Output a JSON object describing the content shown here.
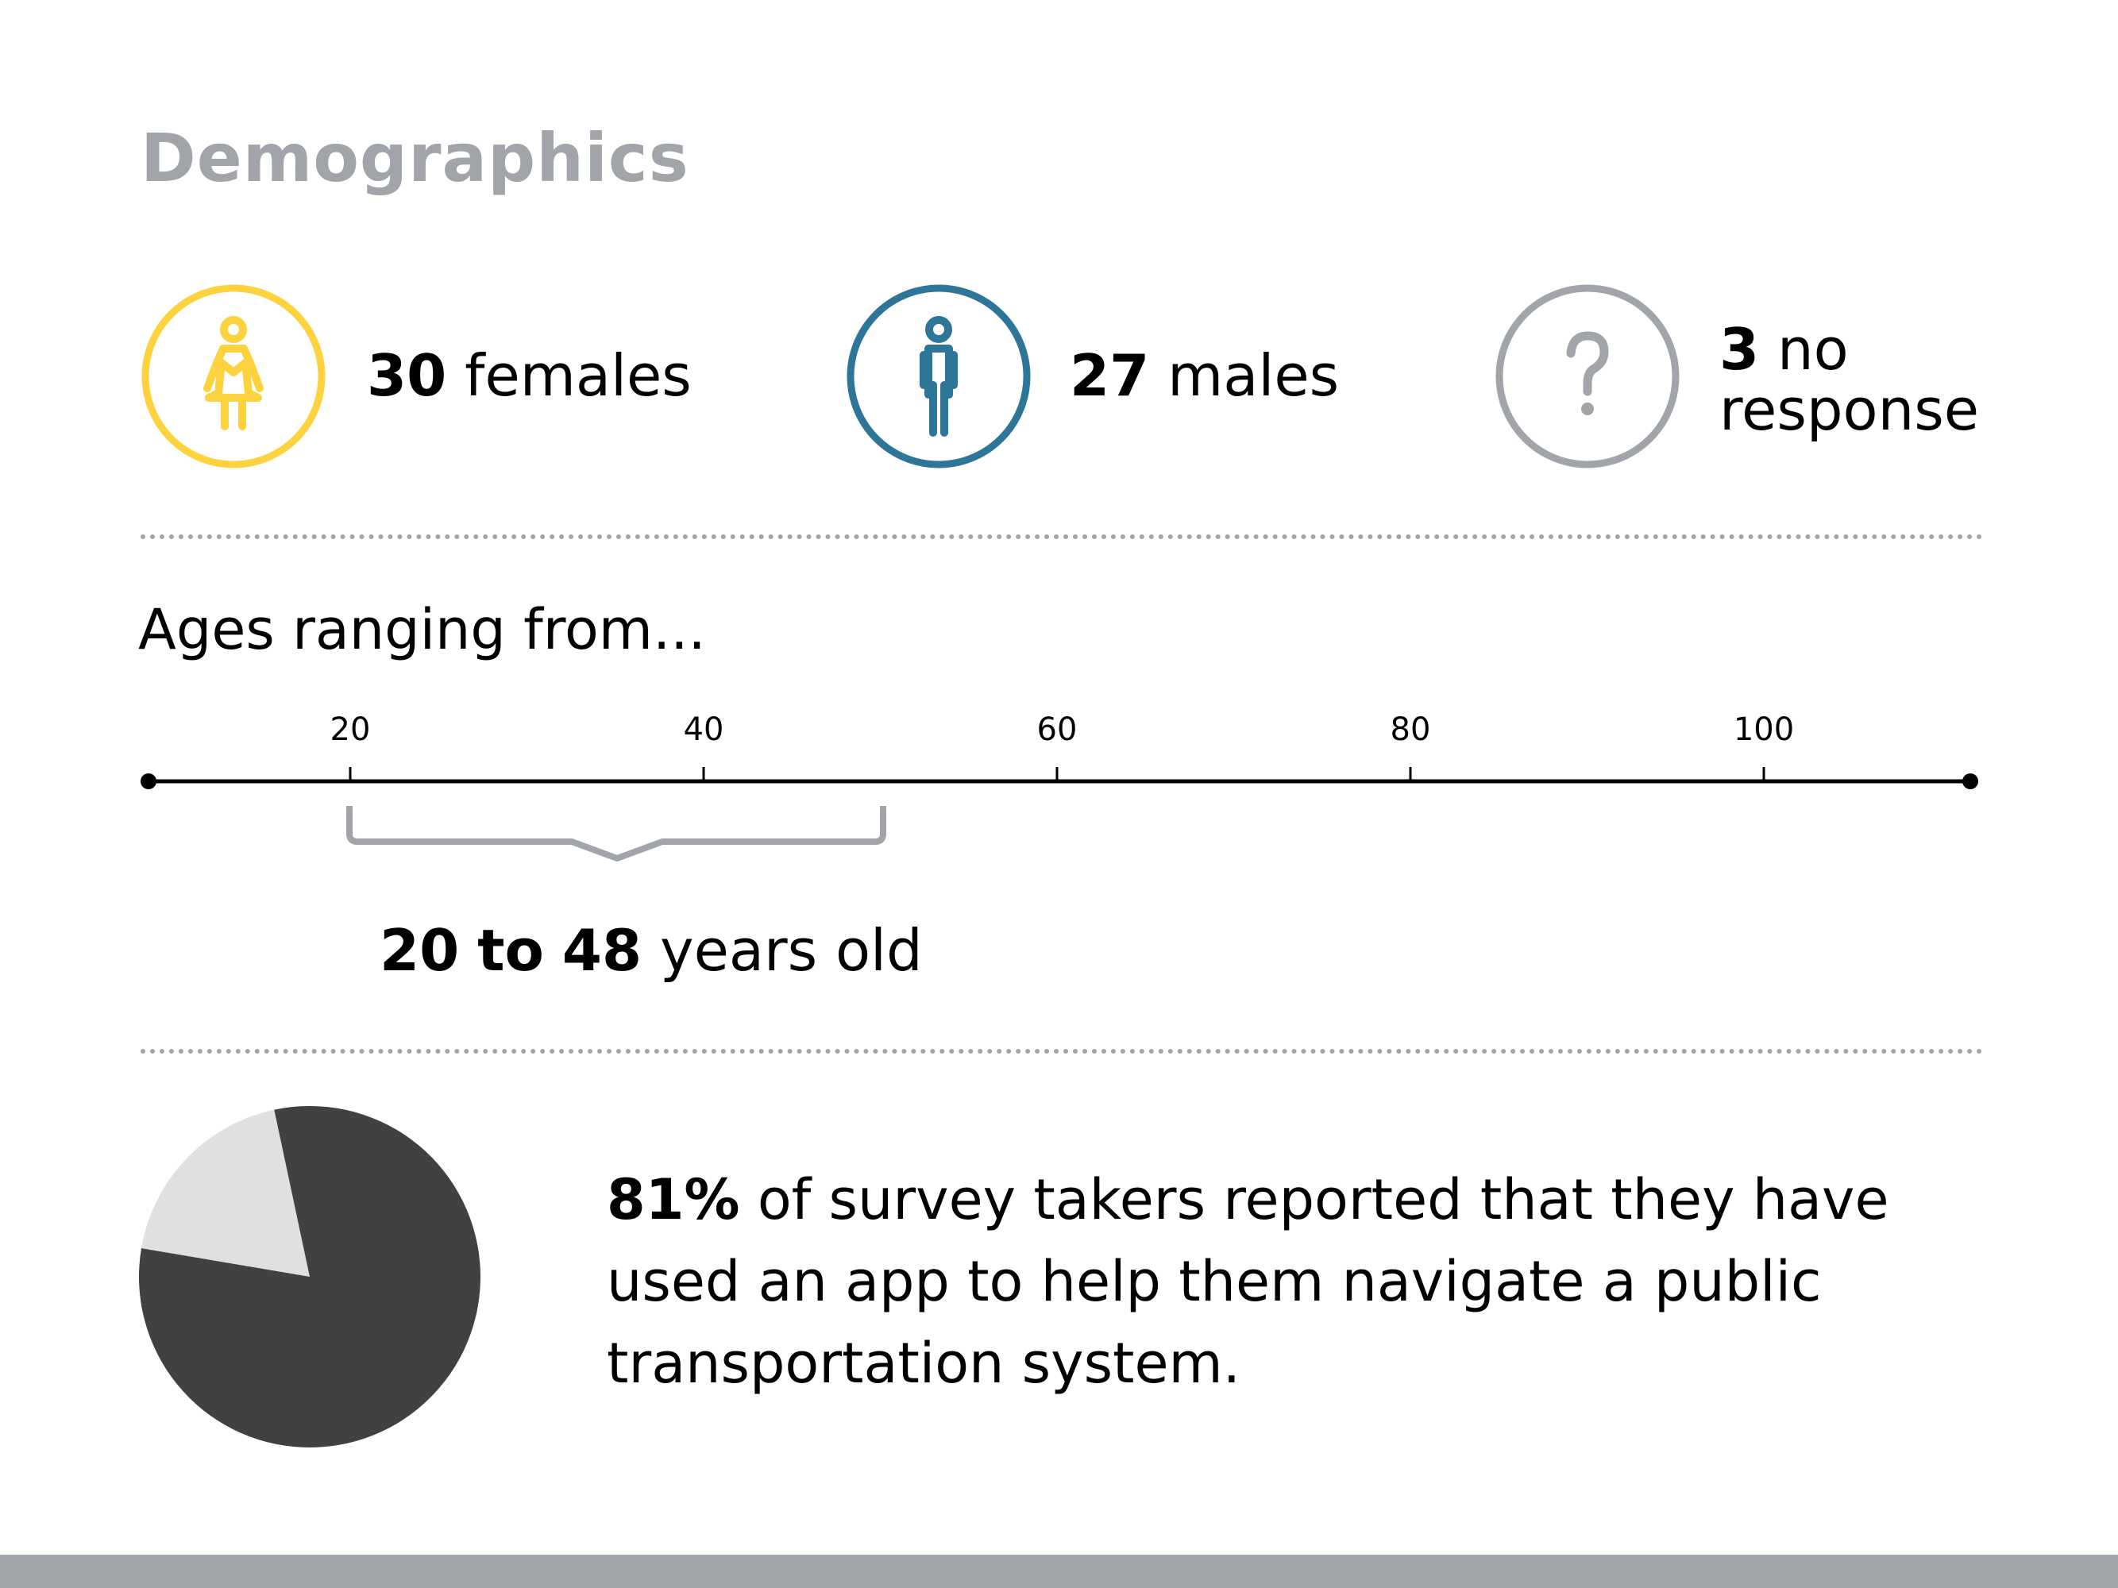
{
  "title": "Demographics",
  "colors": {
    "female": "#fcd23f",
    "male": "#2e7698",
    "no_response": "#a1a4a8",
    "pie_main": "#414143",
    "pie_rest": "#dfe0e2",
    "footer": "#a1a4a8"
  },
  "gender": {
    "female": {
      "count": "30",
      "label": "females",
      "icon": "female-person-icon"
    },
    "male": {
      "count": "27",
      "label": "males",
      "icon": "male-person-icon"
    },
    "no_response": {
      "count": "3",
      "label_line1": "no",
      "label_line2": "response",
      "icon": "question-mark-icon"
    }
  },
  "ages": {
    "heading": "Ages ranging from...",
    "ticks": [
      "20",
      "40",
      "60",
      "80",
      "100"
    ],
    "range_min": "20",
    "range_connector": "to",
    "range_max": "48",
    "range_suffix": "years old"
  },
  "app_use": {
    "percent": 81,
    "percent_label": "81%",
    "statement": "of survey takers reported that they have used an app to help them navigate a public transportation system."
  }
}
